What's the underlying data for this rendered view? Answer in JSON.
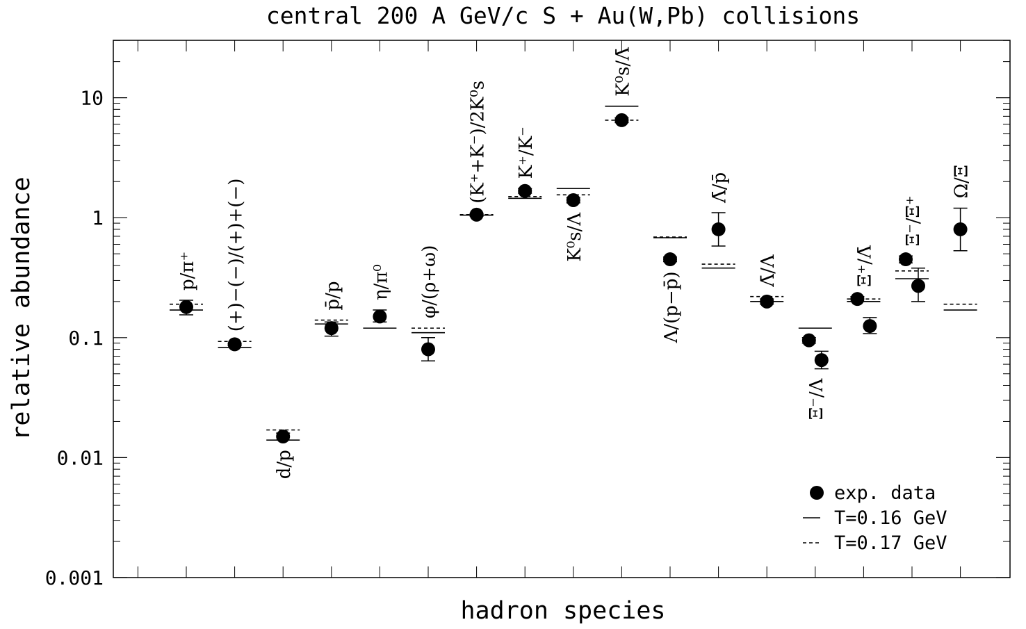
{
  "chart_data": {
    "type": "scatter",
    "title": "central 200 A GeV/c S + Au(W,Pb) collisions",
    "xlabel": "hadron species",
    "ylabel": "relative abundance",
    "yscale": "log",
    "ylim": [
      0.001,
      30
    ],
    "yticks": [
      {
        "value": 0.001,
        "label": "0.001"
      },
      {
        "value": 0.01,
        "label": "0.01"
      },
      {
        "value": 0.1,
        "label": "0.1"
      },
      {
        "value": 1,
        "label": "1"
      },
      {
        "value": 10,
        "label": "10"
      }
    ],
    "legend": {
      "position": "bottom-right",
      "entries": [
        {
          "key": "data",
          "label": "exp. data"
        },
        {
          "key": "t016",
          "label": "T=0.16 GeV"
        },
        {
          "key": "t017",
          "label": "T=0.17 GeV"
        }
      ]
    },
    "ratios": [
      {
        "label": "p/π⁺",
        "data": [
          {
            "y": 0.18,
            "lo": 0.155,
            "hi": 0.205
          }
        ],
        "t016": 0.17,
        "t017": 0.19
      },
      {
        "label": "(+)−(−)/(+)+(−)",
        "data": [
          {
            "y": 0.088,
            "lo": 0.086,
            "hi": 0.09
          }
        ],
        "t016": 0.083,
        "t017": 0.093
      },
      {
        "label": "d/p",
        "data": [
          {
            "y": 0.015,
            "lo": 0.014,
            "hi": 0.016
          }
        ],
        "t016": 0.014,
        "t017": 0.017
      },
      {
        "label": "p̄/p",
        "data": [
          {
            "y": 0.12,
            "lo": 0.103,
            "hi": 0.135
          }
        ],
        "t016": 0.13,
        "t017": 0.14
      },
      {
        "label": "η/π⁰",
        "data": [
          {
            "y": 0.15,
            "lo": 0.135,
            "hi": 0.17
          }
        ],
        "t016": 0.12,
        "t017": null
      },
      {
        "label": "φ/(ρ+ω)",
        "data": [
          {
            "y": 0.08,
            "lo": 0.064,
            "hi": 0.1
          }
        ],
        "t016": 0.11,
        "t017": 0.12
      },
      {
        "label": "(K⁺+K⁻)/2K⁰s",
        "data": [
          {
            "y": 1.06,
            "lo": 1.03,
            "hi": 1.09
          }
        ],
        "t016": 1.05,
        "t017": 1.06
      },
      {
        "label": "K⁺/K⁻",
        "data": [
          {
            "y": 1.67,
            "lo": 1.6,
            "hi": 1.75
          }
        ],
        "t016": 1.45,
        "t017": 1.5
      },
      {
        "label": "K⁰s/Λ",
        "data": [
          {
            "y": 1.4,
            "lo": 1.33,
            "hi": 1.47
          }
        ],
        "t016": 1.75,
        "t017": 1.55
      },
      {
        "label": "K⁰s/Λ̄",
        "data": [
          {
            "y": 6.5,
            "lo": 6.2,
            "hi": 6.8
          }
        ],
        "t016": 8.5,
        "t017": 6.5
      },
      {
        "label": "Λ/(p−p̄)",
        "data": [
          {
            "y": 0.45,
            "lo": 0.43,
            "hi": 0.47
          }
        ],
        "t016": 0.68,
        "t017": 0.69
      },
      {
        "label": "Λ̄/p̄",
        "data": [
          {
            "y": 0.8,
            "lo": 0.58,
            "hi": 1.1
          }
        ],
        "t016": 0.38,
        "t017": 0.41
      },
      {
        "label": "Λ̄/Λ",
        "data": [
          {
            "y": 0.2,
            "lo": 0.19,
            "hi": 0.21
          }
        ],
        "t016": 0.2,
        "t017": 0.22
      },
      {
        "label": "Ξ⁻/Λ",
        "data": [
          {
            "y": 0.095,
            "lo": 0.09,
            "hi": 0.1
          },
          {
            "y": 0.065,
            "lo": 0.055,
            "hi": 0.077
          }
        ],
        "t016": 0.12,
        "t017": null
      },
      {
        "label": "Ξ⁺/Λ̄",
        "data": [
          {
            "y": 0.21,
            "lo": 0.2,
            "hi": 0.22
          },
          {
            "y": 0.125,
            "lo": 0.108,
            "hi": 0.147
          }
        ],
        "t016": 0.2,
        "t017": 0.21
      },
      {
        "label": "Ξ⁻/Ξ⁺",
        "data": [
          {
            "y": 0.45,
            "lo": 0.42,
            "hi": 0.48
          },
          {
            "y": 0.27,
            "lo": 0.2,
            "hi": 0.38
          }
        ],
        "t016": 0.31,
        "t017": 0.36
      },
      {
        "label": "Ω/Ξ",
        "data": [
          {
            "y": 0.8,
            "lo": 0.53,
            "hi": 1.2
          }
        ],
        "t016": 0.17,
        "t017": 0.19
      }
    ]
  }
}
